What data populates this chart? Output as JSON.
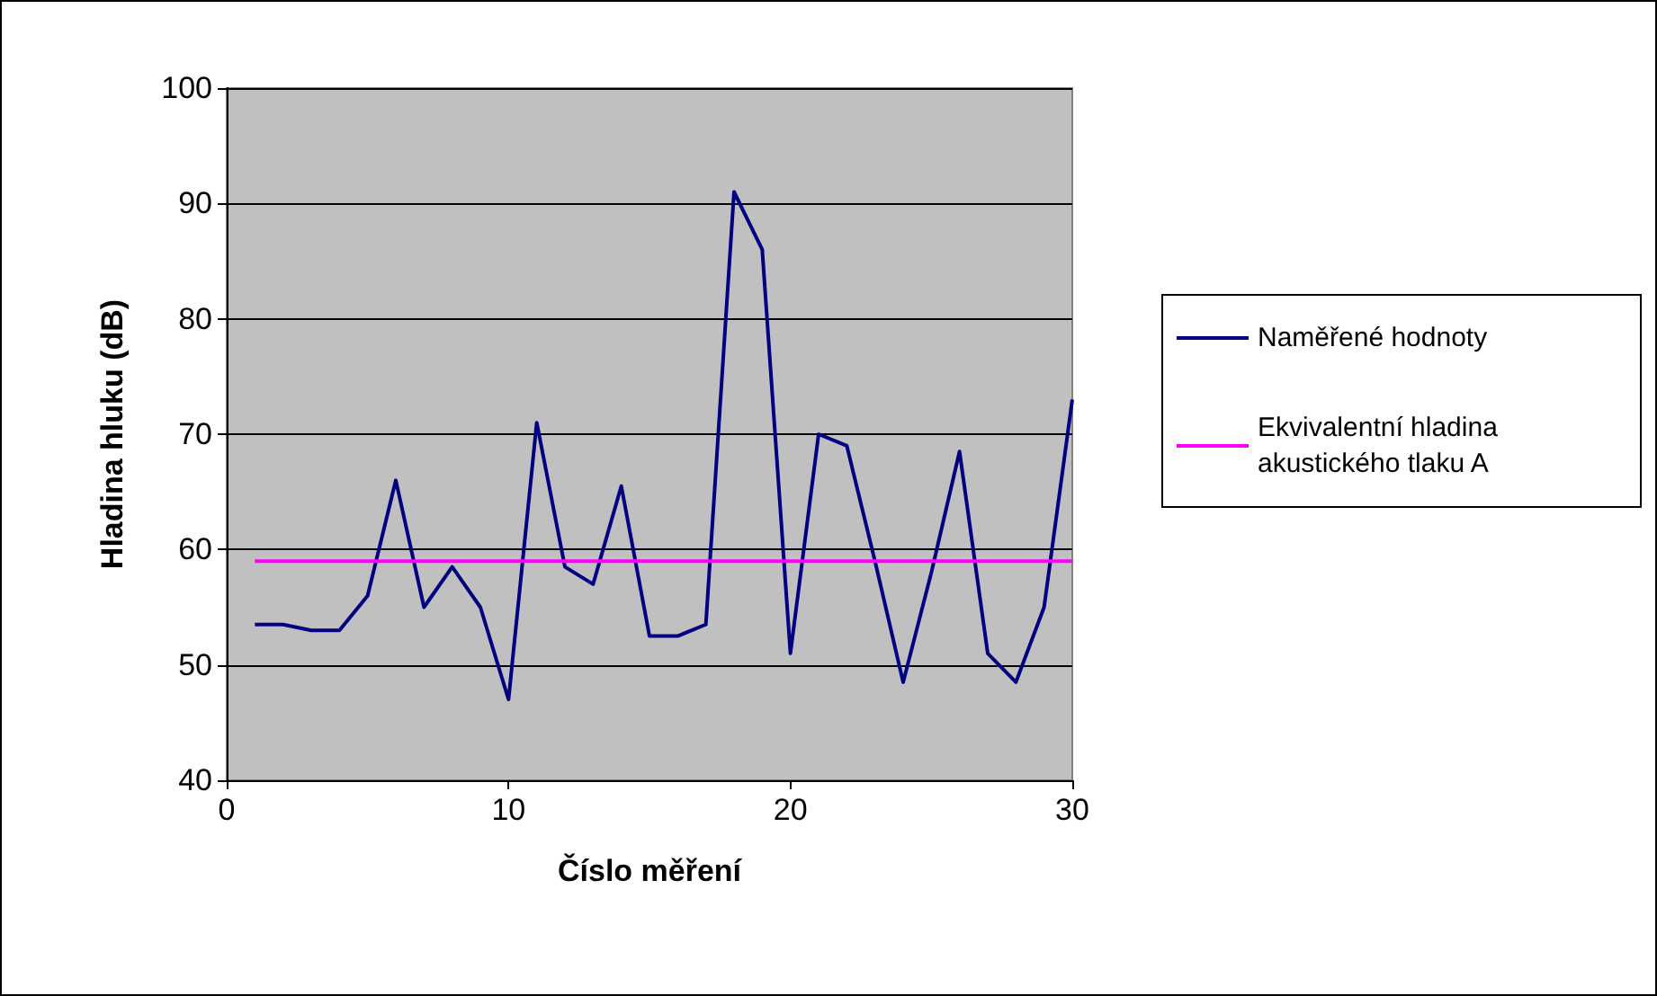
{
  "chart_data": {
    "type": "line",
    "xlabel": "Číslo měření",
    "ylabel": "Hladina hluku (dB)",
    "x": [
      1,
      2,
      3,
      4,
      5,
      6,
      7,
      8,
      9,
      10,
      11,
      12,
      13,
      14,
      15,
      16,
      17,
      18,
      19,
      20,
      21,
      22,
      23,
      24,
      25,
      26,
      27,
      28,
      29,
      30
    ],
    "series": [
      {
        "name": "Naměřené hodnoty",
        "color": "#000080",
        "values": [
          53.5,
          53.5,
          53,
          53,
          56,
          66,
          55,
          58.5,
          55,
          47,
          71,
          58.5,
          57,
          65.5,
          52.5,
          52.5,
          53.5,
          91,
          86,
          51,
          70,
          69,
          59,
          48.5,
          58,
          68.5,
          51,
          48.5,
          55,
          73
        ]
      },
      {
        "name": "Ekvivalentní hladina akustického tlaku A",
        "color": "#ff00ff",
        "x": [
          1,
          30
        ],
        "values": [
          59,
          59
        ]
      }
    ],
    "xlim": [
      0,
      30
    ],
    "xticks": [
      0,
      10,
      20,
      30
    ],
    "ylim": [
      40,
      100
    ],
    "yticks": [
      40,
      50,
      60,
      70,
      80,
      90,
      100
    ],
    "grid": "y",
    "legend": "right",
    "marker": "none",
    "line_style": "solid"
  }
}
